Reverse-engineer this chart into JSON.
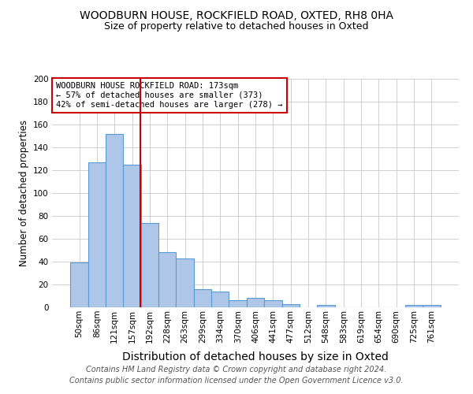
{
  "title1": "WOODBURN HOUSE, ROCKFIELD ROAD, OXTED, RH8 0HA",
  "title2": "Size of property relative to detached houses in Oxted",
  "xlabel": "Distribution of detached houses by size in Oxted",
  "ylabel": "Number of detached properties",
  "bin_labels": [
    "50sqm",
    "86sqm",
    "121sqm",
    "157sqm",
    "192sqm",
    "228sqm",
    "263sqm",
    "299sqm",
    "334sqm",
    "370sqm",
    "406sqm",
    "441sqm",
    "477sqm",
    "512sqm",
    "548sqm",
    "583sqm",
    "619sqm",
    "654sqm",
    "690sqm",
    "725sqm",
    "761sqm"
  ],
  "bar_heights": [
    39,
    127,
    152,
    125,
    74,
    48,
    43,
    16,
    14,
    6,
    8,
    6,
    3,
    0,
    2,
    0,
    0,
    0,
    0,
    2,
    2
  ],
  "bar_color": "#aec6e8",
  "bar_edge_color": "#5b9bd5",
  "annotation_text": "WOODBURN HOUSE ROCKFIELD ROAD: 173sqm\n← 57% of detached houses are smaller (373)\n42% of semi-detached houses are larger (278) →",
  "annotation_box_color": "#ffffff",
  "annotation_box_edge": "#cc0000",
  "red_line_color": "#cc0000",
  "footer1": "Contains HM Land Registry data © Crown copyright and database right 2024.",
  "footer2": "Contains public sector information licensed under the Open Government Licence v3.0.",
  "ylim": [
    0,
    200
  ],
  "yticks": [
    0,
    20,
    40,
    60,
    80,
    100,
    120,
    140,
    160,
    180,
    200
  ],
  "grid_color": "#d0d0d0",
  "background_color": "#ffffff",
  "title1_fontsize": 10,
  "title2_fontsize": 9,
  "xlabel_fontsize": 10,
  "ylabel_fontsize": 8.5,
  "tick_fontsize": 7.5,
  "footer_fontsize": 7
}
